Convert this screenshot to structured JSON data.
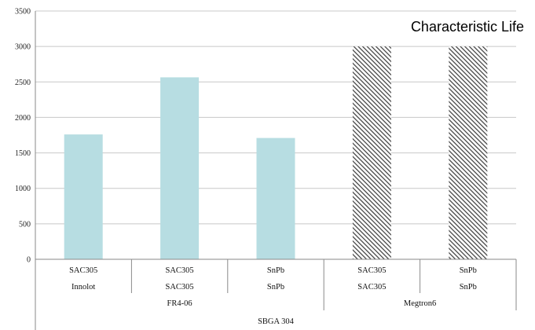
{
  "chart_data": {
    "type": "bar",
    "title": "Characteristic Life",
    "ylim": [
      0,
      3500
    ],
    "y_ticks": [
      "0",
      "500",
      "1000",
      "1500",
      "2000",
      "2500",
      "3000",
      "3500"
    ],
    "gridlines": true,
    "categories": [
      {
        "solder": "SAC305",
        "pad": "Innolot",
        "board": "FR4-06",
        "package": "SBGA 304",
        "value": 1760,
        "fill": "solid",
        "color": "#b7dde2"
      },
      {
        "solder": "SAC305",
        "pad": "SAC305",
        "board": "FR4-06",
        "package": "SBGA 304",
        "value": 2565,
        "fill": "solid",
        "color": "#b7dde2"
      },
      {
        "solder": "SnPb",
        "pad": "SnPb",
        "board": "FR4-06",
        "package": "SBGA 304",
        "value": 1710,
        "fill": "solid",
        "color": "#b7dde2"
      },
      {
        "solder": "SAC305",
        "pad": "SAC305",
        "board": "Megtron6",
        "package": "SBGA 304",
        "value": 3000,
        "fill": "hatched",
        "color": "#333333"
      },
      {
        "solder": "SnPb",
        "pad": "SnPb",
        "board": "Megtron6",
        "package": "SBGA 304",
        "value": 3000,
        "fill": "hatched",
        "color": "#333333"
      }
    ],
    "groups": {
      "board": [
        "FR4-06",
        "Megtron6"
      ],
      "package": [
        "SBGA 304"
      ]
    }
  }
}
